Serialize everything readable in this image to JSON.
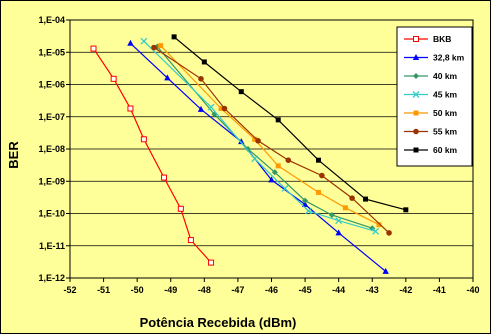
{
  "chart_data": {
    "type": "line",
    "xlabel": "Potência Recebida (dBm)",
    "ylabel": "BER",
    "xlim": [
      -52,
      -40
    ],
    "ylim_exponent": [
      -12,
      -4
    ],
    "y_scale": "log",
    "grid": "horizontal",
    "legend_position": "top-right",
    "x_ticks": [
      "-52",
      "-51",
      "-50",
      "-49",
      "-48",
      "-47",
      "-46",
      "-45",
      "-44",
      "-43",
      "-42",
      "-41",
      "-40"
    ],
    "y_ticks": [
      "1,E-04",
      "1,E-05",
      "1,E-06",
      "1,E-07",
      "1,E-08",
      "1,E-09",
      "1,E-10",
      "1,E-11",
      "1,E-12"
    ],
    "series": [
      {
        "name": "BKB",
        "color": "#ff0000",
        "marker": "square-open",
        "x": [
          -51.3,
          -50.7,
          -50.2,
          -49.8,
          -49.2,
          -48.7,
          -48.4,
          -47.8
        ],
        "y": [
          1.3e-05,
          1.5e-06,
          1.8e-07,
          2e-08,
          1.3e-09,
          1.4e-10,
          1.5e-11,
          3e-12
        ]
      },
      {
        "name": "32,8 km",
        "color": "#0000ff",
        "marker": "triangle",
        "x": [
          -50.2,
          -49.1,
          -48.1,
          -46.9,
          -46.0,
          -45.0,
          -44.0,
          -42.6
        ],
        "y": [
          1.9e-05,
          1.6e-06,
          1.7e-07,
          1.7e-08,
          1.1e-09,
          1.9e-10,
          2.5e-11,
          1.6e-12
        ]
      },
      {
        "name": "40 km",
        "color": "#339966",
        "marker": "diamond",
        "x": [
          -49.4,
          -47.7,
          -46.7,
          -45.9,
          -45.0,
          -44.2,
          -43.0
        ],
        "y": [
          1.5e-05,
          1.2e-07,
          1e-08,
          1.9e-09,
          2.5e-10,
          9e-11,
          3.5e-11
        ]
      },
      {
        "name": "45 km",
        "color": "#33cccc",
        "marker": "x",
        "x": [
          -49.8,
          -47.8,
          -46.5,
          -45.6,
          -44.9,
          -44.0,
          -42.9
        ],
        "y": [
          2.2e-05,
          2e-07,
          5e-09,
          6e-10,
          1.2e-10,
          6e-11,
          2.8e-11
        ]
      },
      {
        "name": "50 km",
        "color": "#ff9900",
        "marker": "square",
        "x": [
          -49.3,
          -47.5,
          -46.5,
          -45.8,
          -44.6,
          -43.8,
          -42.8
        ],
        "y": [
          1.6e-05,
          1.8e-07,
          2e-08,
          3e-09,
          4.5e-10,
          1.5e-10,
          4.5e-11
        ]
      },
      {
        "name": "55 km",
        "color": "#993300",
        "marker": "circle",
        "x": [
          -49.5,
          -48.1,
          -47.4,
          -46.4,
          -45.5,
          -44.5,
          -43.6,
          -42.5
        ],
        "y": [
          1.4e-05,
          1.5e-06,
          1.8e-07,
          1.8e-08,
          4.5e-09,
          1.5e-09,
          3e-10,
          2.5e-11
        ]
      },
      {
        "name": "60 km",
        "color": "#000000",
        "marker": "square",
        "x": [
          -48.9,
          -48.0,
          -46.9,
          -45.8,
          -44.6,
          -43.2,
          -42.0
        ],
        "y": [
          3e-05,
          5e-06,
          6e-07,
          8e-08,
          4.5e-09,
          2.8e-10,
          1.3e-10
        ]
      }
    ]
  }
}
